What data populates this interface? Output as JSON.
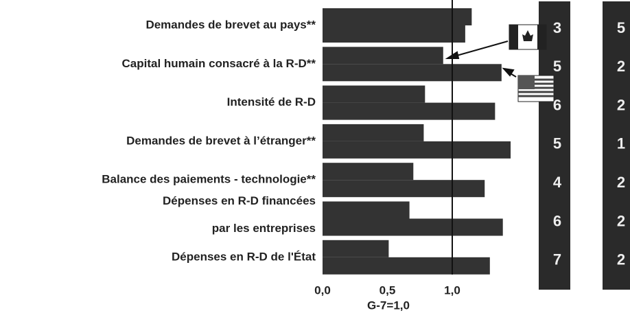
{
  "chart_data": {
    "type": "bar",
    "orientation": "horizontal",
    "categories": [
      [
        "Demandes de brevet au pays**"
      ],
      [
        "Capital humain consacré à la R-D**"
      ],
      [
        "Intensité de R-D"
      ],
      [
        "Demandes de brevet à l’étranger**"
      ],
      [
        "Balance des paiements - technologie**"
      ],
      [
        "Dépenses en R-D financées",
        "par les entreprises"
      ],
      [
        "Dépenses en R-D de l'État"
      ]
    ],
    "series": [
      {
        "color": "#333333",
        "values": [
          1.15,
          0.93,
          0.79,
          0.78,
          0.7,
          0.67,
          0.51
        ],
        "ranks": [
          3,
          5,
          6,
          5,
          4,
          6,
          7
        ]
      },
      {
        "color": "#333333",
        "values": [
          1.1,
          1.38,
          1.33,
          1.45,
          1.25,
          1.39,
          1.29
        ],
        "ranks": [
          5,
          2,
          2,
          1,
          2,
          2,
          2
        ]
      }
    ],
    "xlim": [
      0,
      1.5
    ],
    "xticks": [
      {
        "value": 0,
        "label": "0,0"
      },
      {
        "value": 0.5,
        "label": "0,5"
      },
      {
        "value": 1,
        "label": "1,0"
      }
    ],
    "reference_line": {
      "value": 1,
      "label": "G-7=1,0"
    }
  }
}
